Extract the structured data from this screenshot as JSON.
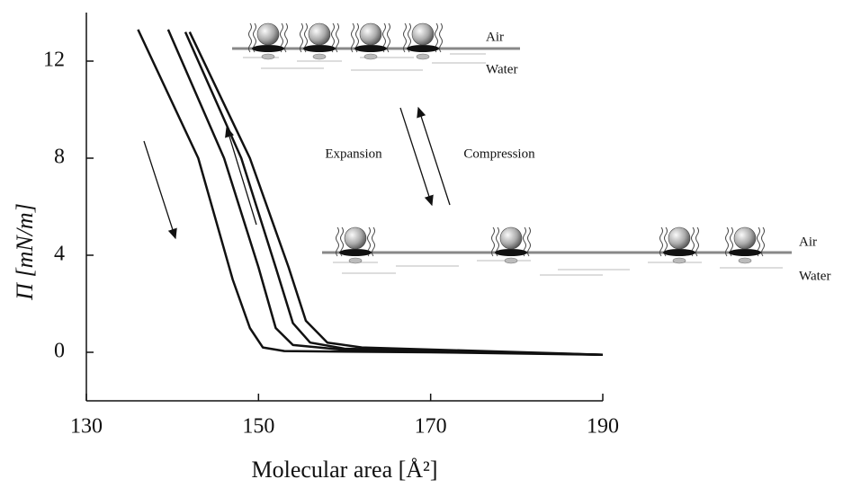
{
  "chart_data": {
    "type": "line",
    "x_label": "Molecular area [Å²]",
    "y_label": "Π [mN/m]",
    "xlim": [
      130,
      190
    ],
    "xticks": [
      130,
      150,
      170,
      190
    ],
    "ylim": [
      -2,
      14
    ],
    "yticks": [
      0,
      4,
      8,
      12
    ],
    "annotations": [
      "Expansion",
      "Compression",
      "Air",
      "Water",
      "Air",
      "Water"
    ],
    "series": [
      {
        "color": "#111111",
        "x": [
          136,
          143,
          147,
          149,
          150.5,
          153,
          170,
          190
        ],
        "values": [
          13.3,
          8,
          3,
          1,
          0.2,
          0.05,
          0,
          -0.1
        ]
      },
      {
        "color": "#111111",
        "x": [
          139.5,
          146,
          150,
          152,
          154,
          160,
          190
        ],
        "values": [
          13.3,
          8,
          3.5,
          1,
          0.3,
          0.1,
          -0.1
        ]
      },
      {
        "color": "#111111",
        "x": [
          141.5,
          148,
          152,
          154,
          156,
          160,
          190
        ],
        "values": [
          13.2,
          8,
          3.5,
          1.2,
          0.4,
          0.15,
          -0.1
        ]
      },
      {
        "color": "#111111",
        "x": [
          142,
          149,
          153.5,
          155.5,
          158,
          162,
          190
        ],
        "values": [
          13.2,
          8,
          3.5,
          1.3,
          0.4,
          0.2,
          -0.1
        ]
      }
    ]
  }
}
